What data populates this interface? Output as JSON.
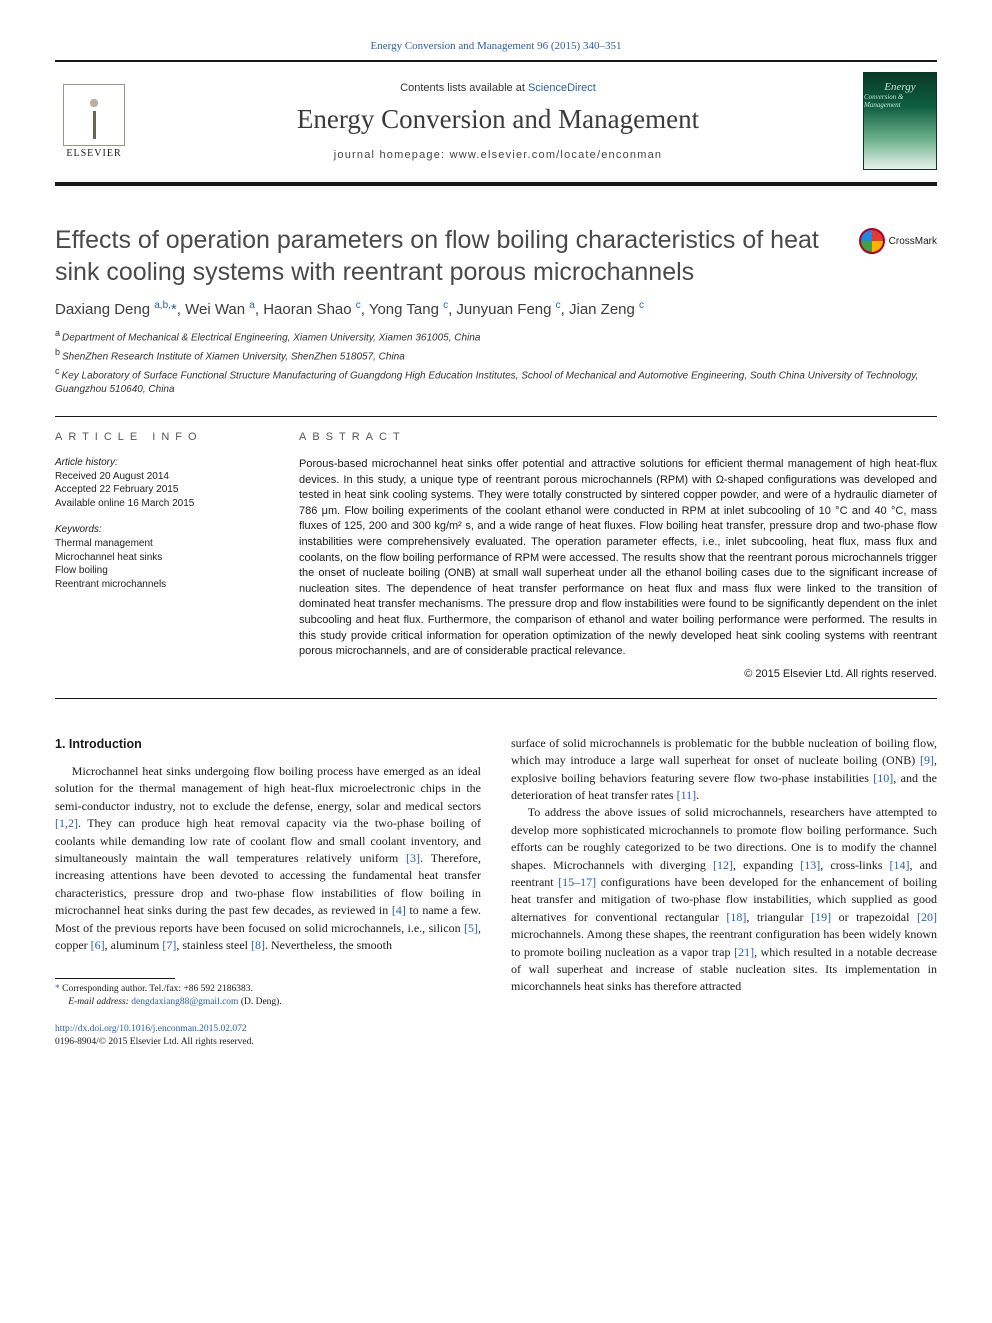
{
  "header": {
    "citation_prefix": "Energy Conversion and Management 96 (2015) 340–351",
    "contents_line_pre": "Contents lists available at ",
    "contents_link": "ScienceDirect",
    "journal_name": "Energy Conversion and Management",
    "homepage_pre": "journal homepage: ",
    "homepage_url": "www.elsevier.com/locate/enconman",
    "elsevier_label": "ELSEVIER",
    "cover_line1": "Energy",
    "cover_line2": "Conversion & Management"
  },
  "title": "Effects of operation parameters on flow boiling characteristics of heat sink cooling systems with reentrant porous microchannels",
  "crossmark_label": "CrossMark",
  "authors_html": "Daxiang Deng <sup>a,b,</sup><span class=\"corr\">*</span>, Wei Wan <sup>a</sup>, Haoran Shao <sup>c</sup>, Yong Tang <sup>c</sup>, Junyuan Feng <sup>c</sup>, Jian Zeng <sup>c</sup>",
  "affiliations": [
    {
      "sup": "a",
      "text": "Department of Mechanical & Electrical Engineering, Xiamen University, Xiamen 361005, China"
    },
    {
      "sup": "b",
      "text": "ShenZhen Research Institute of Xiamen University, ShenZhen 518057, China"
    },
    {
      "sup": "c",
      "text": "Key Laboratory of Surface Functional Structure Manufacturing of Guangdong High Education Institutes, School of Mechanical and Automotive Engineering, South China University of Technology, Guangzhou 510640, China"
    }
  ],
  "info": {
    "head": "ARTICLE INFO",
    "history_label": "Article history:",
    "received": "Received 20 August 2014",
    "accepted": "Accepted 22 February 2015",
    "available": "Available online 16 March 2015",
    "keywords_label": "Keywords:",
    "keywords": [
      "Thermal management",
      "Microchannel heat sinks",
      "Flow boiling",
      "Reentrant microchannels"
    ]
  },
  "abstract": {
    "head": "ABSTRACT",
    "text": "Porous-based microchannel heat sinks offer potential and attractive solutions for efficient thermal management of high heat-flux devices. In this study, a unique type of reentrant porous microchannels (RPM) with Ω-shaped configurations was developed and tested in heat sink cooling systems. They were totally constructed by sintered copper powder, and were of a hydraulic diameter of 786 μm. Flow boiling experiments of the coolant ethanol were conducted in RPM at inlet subcooling of 10 °C and 40 °C, mass fluxes of 125, 200 and 300 kg/m² s, and a wide range of heat fluxes. Flow boiling heat transfer, pressure drop and two-phase flow instabilities were comprehensively evaluated. The operation parameter effects, i.e., inlet subcooling, heat flux, mass flux and coolants, on the flow boiling performance of RPM were accessed. The results show that the reentrant porous microchannels trigger the onset of nucleate boiling (ONB) at small wall superheat under all the ethanol boiling cases due to the significant increase of nucleation sites. The dependence of heat transfer performance on heat flux and mass flux were linked to the transition of dominated heat transfer mechanisms. The pressure drop and flow instabilities were found to be significantly dependent on the inlet subcooling and heat flux. Furthermore, the comparison of ethanol and water boiling performance were performed. The results in this study provide critical information for operation optimization of the newly developed heat sink cooling systems with reentrant porous microchannels, and are of considerable practical relevance.",
    "copyright": "© 2015 Elsevier Ltd. All rights reserved."
  },
  "body": {
    "section1_heading": "1. Introduction",
    "col1_html": "Microchannel heat sinks undergoing flow boiling process have emerged as an ideal solution for the thermal management of high heat-flux microelectronic chips in the semi-conductor industry, not to exclude the defense, energy, solar and medical sectors <a class=\"ref\" href=\"#\" data-name=\"ref-link\" data-interactable=\"true\">[1,2]</a>. They can produce high heat removal capacity via the two-phase boiling of coolants while demanding low rate of coolant flow and small coolant inventory, and simultaneously maintain the wall temperatures relatively uniform <a class=\"ref\" href=\"#\" data-name=\"ref-link\" data-interactable=\"true\">[3]</a>. Therefore, increasing attentions have been devoted to accessing the fundamental heat transfer characteristics, pressure drop and two-phase flow instabilities of flow boiling in microchannel heat sinks during the past few decades, as reviewed in <a class=\"ref\" href=\"#\" data-name=\"ref-link\" data-interactable=\"true\">[4]</a> to name a few. Most of the previous reports have been focused on solid microchannels, i.e., silicon <a class=\"ref\" href=\"#\" data-name=\"ref-link\" data-interactable=\"true\">[5]</a>, copper <a class=\"ref\" href=\"#\" data-name=\"ref-link\" data-interactable=\"true\">[6]</a>, aluminum <a class=\"ref\" href=\"#\" data-name=\"ref-link\" data-interactable=\"true\">[7]</a>, stainless steel <a class=\"ref\" href=\"#\" data-name=\"ref-link\" data-interactable=\"true\">[8]</a>. Nevertheless, the smooth",
    "col2_p1_html": "surface of solid microchannels is problematic for the bubble nucleation of boiling flow, which may introduce a large wall superheat for onset of nucleate boiling (ONB) <a class=\"ref\" href=\"#\" data-name=\"ref-link\" data-interactable=\"true\">[9]</a>, explosive boiling behaviors featuring severe flow two-phase instabilities <a class=\"ref\" href=\"#\" data-name=\"ref-link\" data-interactable=\"true\">[10]</a>, and the deterioration of heat transfer rates <a class=\"ref\" href=\"#\" data-name=\"ref-link\" data-interactable=\"true\">[11]</a>.",
    "col2_p2_html": "To address the above issues of solid microchannels, researchers have attempted to develop more sophisticated microchannels to promote flow boiling performance. Such efforts can be roughly categorized to be two directions. One is to modify the channel shapes. Microchannels with diverging <a class=\"ref\" href=\"#\" data-name=\"ref-link\" data-interactable=\"true\">[12]</a>, expanding <a class=\"ref\" href=\"#\" data-name=\"ref-link\" data-interactable=\"true\">[13]</a>, cross-links <a class=\"ref\" href=\"#\" data-name=\"ref-link\" data-interactable=\"true\">[14]</a>, and reentrant <a class=\"ref\" href=\"#\" data-name=\"ref-link\" data-interactable=\"true\">[15–17]</a> configurations have been developed for the enhancement of boiling heat transfer and mitigation of two-phase flow instabilities, which supplied as good alternatives for conventional rectangular <a class=\"ref\" href=\"#\" data-name=\"ref-link\" data-interactable=\"true\">[18]</a>, triangular <a class=\"ref\" href=\"#\" data-name=\"ref-link\" data-interactable=\"true\">[19]</a> or trapezoidal <a class=\"ref\" href=\"#\" data-name=\"ref-link\" data-interactable=\"true\">[20]</a> microchannels. Among these shapes, the reentrant configuration has been widely known to promote boiling nucleation as a vapor trap <a class=\"ref\" href=\"#\" data-name=\"ref-link\" data-interactable=\"true\">[21]</a>, which resulted in a notable decrease of wall superheat and increase of stable nucleation sites. Its implementation in micorchannels heat sinks has therefore attracted"
  },
  "footnote": {
    "corr": "Corresponding author. Tel./fax: +86 592 2186383.",
    "email_label": "E-mail address:",
    "email": "dengdaxiang88@gmail.com",
    "email_suffix": "(D. Deng)."
  },
  "doi": {
    "url": "http://dx.doi.org/10.1016/j.enconman.2015.02.072",
    "issn_line": "0196-8904/© 2015 Elsevier Ltd. All rights reserved."
  },
  "colors": {
    "link": "#2a5db0",
    "text": "#1a1a1a",
    "title_gray": "#4a4a4a",
    "cover_dark": "#083927"
  }
}
